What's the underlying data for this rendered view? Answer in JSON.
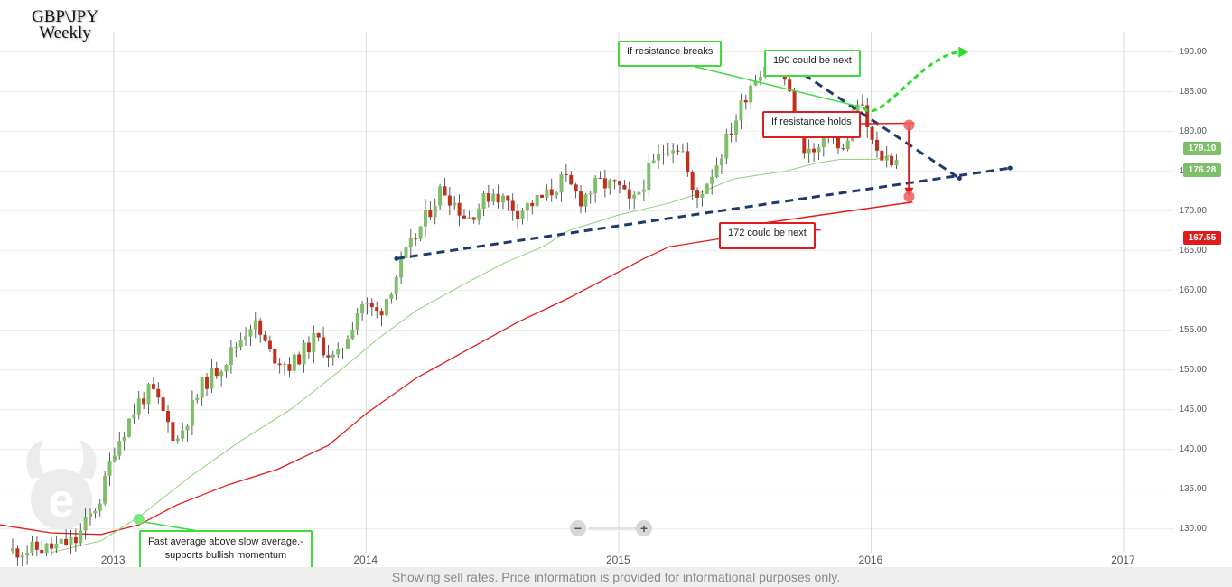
{
  "title": {
    "line1": "GBP\\JPY",
    "line2": "Weekly"
  },
  "footer_text": "Showing sell rates. Price information is provided for informational purposes only.",
  "annotations": {
    "resistance_breaks": "If resistance breaks",
    "next_190": "190 could be next",
    "resistance_holds": "If resistance holds",
    "next_172": "172 could be next",
    "fast_avg_line1": "Fast average above slow average.-",
    "fast_avg_line2": "supports bullish momentum"
  },
  "price_badges": {
    "top": "179.10",
    "middle": "176.28",
    "bottom": "167.55"
  },
  "colors": {
    "bull": "#7fbf6a",
    "bear": "#c0301c",
    "fast_ma": "#8fd07a",
    "slow_ma": "#e01b1b",
    "trendline": "#1f3b6b",
    "badge_green": "#7fbf6a",
    "badge_red": "#e01b1b"
  },
  "zoom": {
    "minus": "−",
    "plus": "+"
  },
  "chart_data": {
    "type": "candlestick",
    "title": "GBP\\JPY Weekly",
    "x_axis": {
      "ticks": [
        "2013",
        "2014",
        "2015",
        "2016",
        "2017"
      ],
      "range": [
        2012.55,
        2017.2
      ]
    },
    "y_axis": {
      "ticks": [
        "130.00",
        "135.00",
        "140.00",
        "145.00",
        "150.00",
        "155.00",
        "160.00",
        "165.00",
        "170.00",
        "175.00",
        "180.00",
        "185.00",
        "190.00"
      ],
      "range": [
        127,
        192
      ],
      "side": "right"
    },
    "grid": true,
    "close_path": [
      [
        2012.6,
        127.2
      ],
      [
        2012.75,
        127.6
      ],
      [
        2012.85,
        128.5
      ],
      [
        2012.95,
        134
      ],
      [
        2013.0,
        140
      ],
      [
        2013.1,
        146
      ],
      [
        2013.15,
        147.5
      ],
      [
        2013.25,
        141
      ],
      [
        2013.35,
        148
      ],
      [
        2013.45,
        151.5
      ],
      [
        2013.55,
        156.2
      ],
      [
        2013.62,
        152
      ],
      [
        2013.7,
        150.5
      ],
      [
        2013.8,
        154
      ],
      [
        2013.88,
        151
      ],
      [
        2013.98,
        158.5
      ],
      [
        2014.05,
        157
      ],
      [
        2014.15,
        164
      ],
      [
        2014.25,
        170
      ],
      [
        2014.3,
        173
      ],
      [
        2014.4,
        169
      ],
      [
        2014.5,
        172.5
      ],
      [
        2014.6,
        170
      ],
      [
        2014.72,
        172
      ],
      [
        2014.78,
        174
      ],
      [
        2014.85,
        171.5
      ],
      [
        2014.92,
        173.5
      ],
      [
        2015.0,
        173
      ],
      [
        2015.05,
        170.5
      ],
      [
        2015.12,
        175
      ],
      [
        2015.2,
        178.5
      ],
      [
        2015.25,
        178
      ],
      [
        2015.3,
        171
      ],
      [
        2015.38,
        175.5
      ],
      [
        2015.45,
        180.5
      ],
      [
        2015.52,
        186
      ],
      [
        2015.6,
        189.5
      ],
      [
        2015.66,
        186.5
      ],
      [
        2015.72,
        178.5
      ],
      [
        2015.78,
        177
      ],
      [
        2015.84,
        181
      ],
      [
        2015.88,
        176.5
      ],
      [
        2015.95,
        184
      ],
      [
        2016.02,
        177
      ],
      [
        2016.08,
        176.5
      ],
      [
        2016.1,
        176.8
      ]
    ],
    "fast_average": [
      [
        2012.75,
        127
      ],
      [
        2012.95,
        128.5
      ],
      [
        2013.1,
        131.5
      ],
      [
        2013.3,
        136.5
      ],
      [
        2013.5,
        141
      ],
      [
        2013.7,
        145
      ],
      [
        2013.9,
        150
      ],
      [
        2014.05,
        154
      ],
      [
        2014.2,
        157.5
      ],
      [
        2014.4,
        161
      ],
      [
        2014.55,
        163.5
      ],
      [
        2014.7,
        165.5
      ],
      [
        2014.8,
        167.5
      ],
      [
        2015.0,
        169.5
      ],
      [
        2015.2,
        171
      ],
      [
        2015.3,
        172
      ],
      [
        2015.45,
        174
      ],
      [
        2015.55,
        174.5
      ],
      [
        2015.66,
        175
      ],
      [
        2015.78,
        176
      ],
      [
        2015.88,
        176.5
      ],
      [
        2016.02,
        176.5
      ],
      [
        2016.08,
        177
      ]
    ],
    "slow_average": [
      [
        2012.55,
        130.5
      ],
      [
        2012.75,
        129.5
      ],
      [
        2012.95,
        129.3
      ],
      [
        2013.1,
        130.5
      ],
      [
        2013.25,
        133
      ],
      [
        2013.45,
        135.5
      ],
      [
        2013.65,
        137.5
      ],
      [
        2013.85,
        140.5
      ],
      [
        2014.0,
        144.5
      ],
      [
        2014.2,
        149
      ],
      [
        2014.4,
        152.5
      ],
      [
        2014.6,
        156
      ],
      [
        2014.8,
        159
      ],
      [
        2014.95,
        161.5
      ],
      [
        2015.1,
        164
      ],
      [
        2015.2,
        165.5
      ],
      [
        2015.4,
        166.5
      ],
      [
        2015.55,
        167.2
      ],
      [
        2015.7,
        167.6
      ],
      [
        2015.8,
        167.6
      ]
    ],
    "resistance_line": {
      "from": [
        2015.6,
        190.0
      ],
      "to": [
        2016.35,
        174.1
      ]
    },
    "support_line": {
      "from": [
        2014.12,
        164.0
      ],
      "to": [
        2016.55,
        175.4
      ]
    },
    "bullish_path": [
      [
        2015.97,
        183.0
      ],
      [
        2016.03,
        180.5
      ],
      [
        2016.2,
        189.6
      ],
      [
        2016.35,
        190.0
      ]
    ],
    "bearish_path": {
      "from": [
        2016.15,
        180.8
      ],
      "to": [
        2016.15,
        171.8
      ]
    },
    "markers": [
      {
        "color": "green",
        "at": [
          2013.1,
          131.2
        ]
      },
      {
        "color": "red",
        "at": [
          2016.15,
          180.8
        ]
      },
      {
        "color": "red",
        "at": [
          2016.15,
          171.8
        ]
      }
    ],
    "current_prices": {
      "fast_average": 176.28,
      "close": 179.1,
      "slow_average": 167.55
    }
  }
}
